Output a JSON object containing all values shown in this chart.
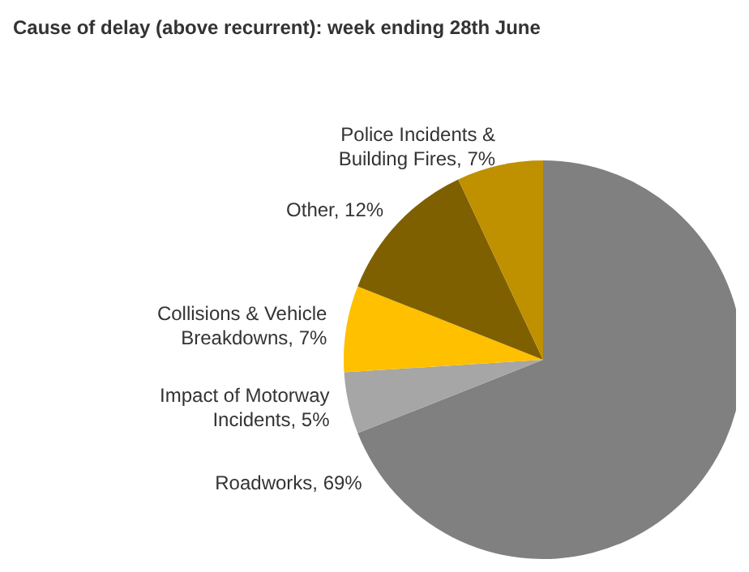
{
  "chart_data": {
    "type": "pie",
    "title": "Cause of delay (above recurrent): week ending 28th June",
    "categories": [
      "Roadworks",
      "Impact of Motorway Incidents",
      "Collisions & Vehicle Breakdowns",
      "Other",
      "Police Incidents & Building Fires"
    ],
    "values": [
      69,
      5,
      7,
      12,
      7
    ],
    "value_labels": [
      "69%",
      "5%",
      "7%",
      "12%",
      "7%"
    ],
    "colors": [
      "#808080",
      "#a6a6a6",
      "#ffc000",
      "#7f6000",
      "#bf9000"
    ],
    "legend": false
  }
}
